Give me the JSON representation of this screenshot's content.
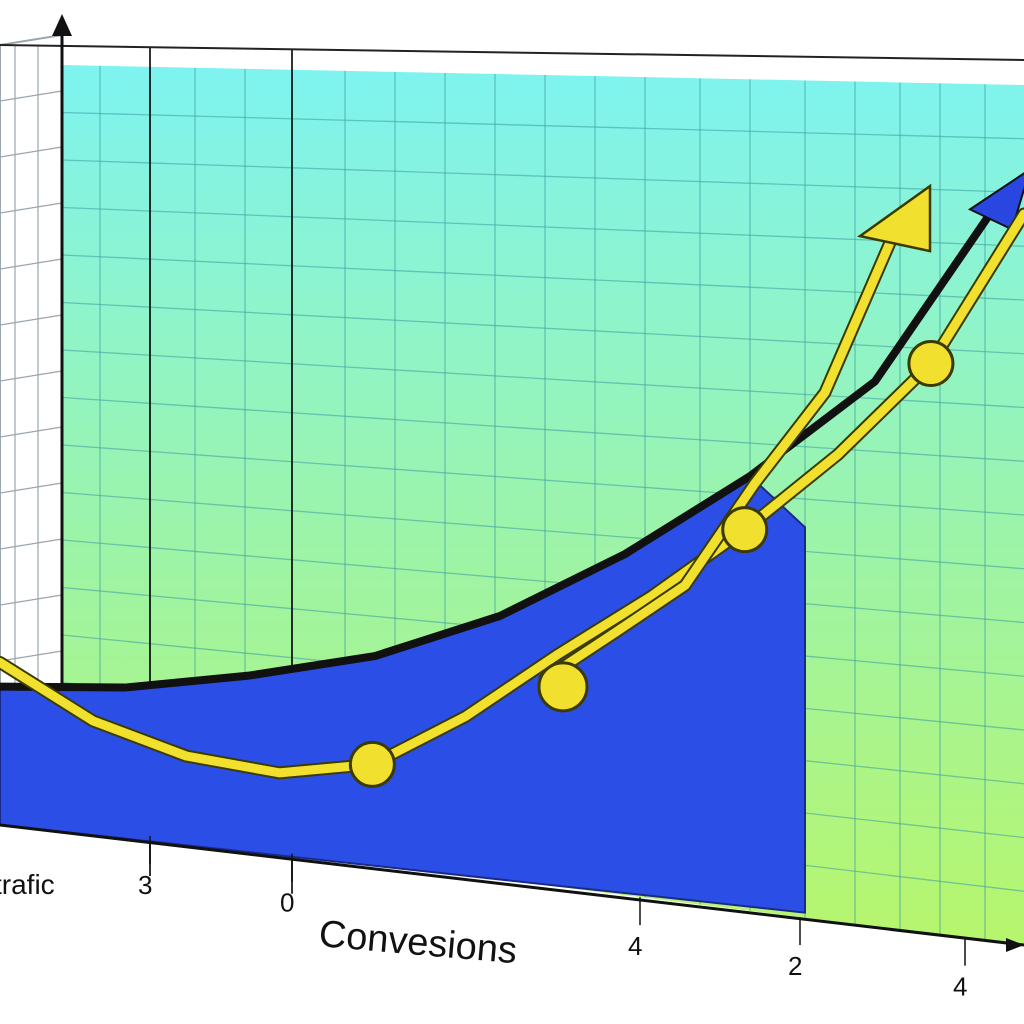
{
  "chart_data": {
    "type": "line",
    "xlabel": "Convesions",
    "side_label": "trafic",
    "x_tick_labels": [
      "3",
      "0",
      "4",
      "2",
      "4"
    ],
    "series": [
      {
        "name": "",
        "color": "#111111",
        "fill": "#2b4fe6",
        "arrow_color": "#2a46e0",
        "values": [
          0.0,
          0.2,
          0.6,
          1.1,
          1.9,
          3.0,
          4.3,
          5.8,
          8.5
        ]
      },
      {
        "name": "",
        "color": "#f2e02e",
        "values": [
          0.4,
          -0.4,
          -0.8,
          -0.9,
          -0.6,
          0.3,
          1.4,
          2.4,
          3.5,
          4.7,
          6.1,
          8.3
        ]
      },
      {
        "name": "",
        "color": "#f2e02e",
        "values": [
          1.0,
          1.8,
          2.6,
          4.2,
          5.6,
          8.0
        ]
      }
    ],
    "grid": true,
    "colors": {
      "bg_top": "#7ef3f0",
      "bg_bottom": "#b7f56c",
      "area": "#2b4fe6",
      "accent": "#f2e02e"
    }
  }
}
